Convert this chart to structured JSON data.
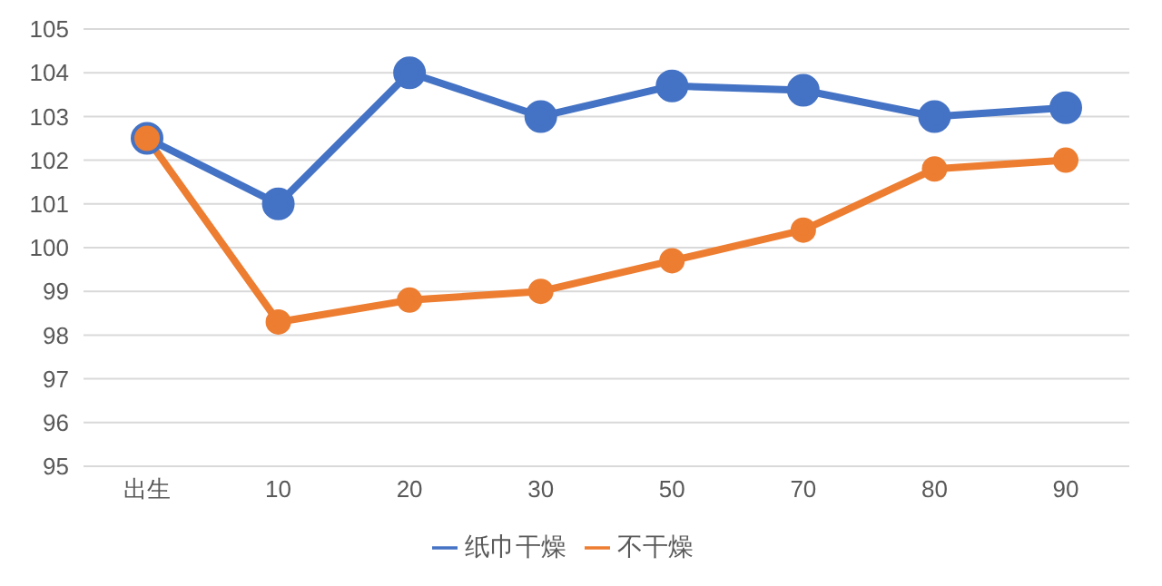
{
  "chart_data": {
    "type": "line",
    "categories": [
      "出生",
      "10",
      "20",
      "30",
      "50",
      "70",
      "80",
      "90"
    ],
    "series": [
      {
        "name": "纸巾干燥",
        "color": "#4472c4",
        "values": [
          102.5,
          101,
          104,
          103,
          103.7,
          103.6,
          103,
          103.2
        ]
      },
      {
        "name": "不干燥",
        "color": "#ed7d31",
        "values": [
          102.5,
          98.3,
          98.8,
          99,
          99.7,
          100.4,
          101.8,
          102
        ]
      }
    ],
    "ylim": [
      95,
      105
    ],
    "yticks": [
      95,
      96,
      97,
      98,
      99,
      100,
      101,
      102,
      103,
      104,
      105
    ],
    "grid": "y",
    "legend": "bottom",
    "marker": "circle",
    "line_style": "solid"
  }
}
